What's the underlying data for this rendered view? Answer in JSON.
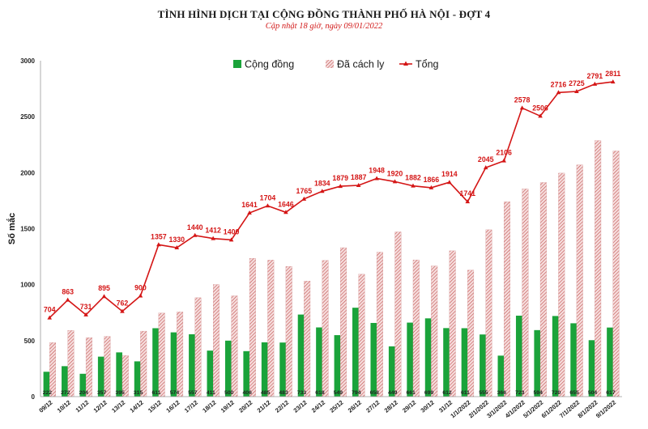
{
  "chart_data": {
    "type": "bar",
    "title": "TÌNH HÌNH DỊCH TẠI CỘNG ĐỒNG THÀNH PHỐ HÀ NỘI - ĐỢT 4",
    "subtitle": "Cập nhật 18 giờ, ngày 09/01/2022",
    "ylabel": "Số mắc",
    "xlabel": "",
    "ylim": [
      0,
      3000
    ],
    "yticks": [
      "0",
      "500",
      "1000",
      "1500",
      "2000",
      "2500",
      "3000"
    ],
    "legend_position": "top",
    "categories": [
      "09/12",
      "10/12",
      "11/12",
      "12/12",
      "13/12",
      "14/12",
      "15/12",
      "16/12",
      "17/12",
      "18/12",
      "19/12",
      "20/12",
      "21/12",
      "22/12",
      "23/12",
      "24/12",
      "25/12",
      "26/12",
      "27/12",
      "28/12",
      "29/12",
      "30/12",
      "31/12",
      "1/1/2022",
      "2/1/2022",
      "3/1/2022",
      "4/1/2022",
      "5/1/2022",
      "6/1/2022",
      "7/1/2022",
      "8/1/2022",
      "9/1/2022"
    ],
    "series": [
      {
        "name": "Cộng đồng",
        "kind": "bar",
        "color": "#1aa33a",
        "values": [
          222,
          272,
          204,
          357,
          395,
          315,
          611,
          574,
          557,
          411,
          500,
          406,
          485,
          483,
          733,
          618,
          549,
          794,
          658,
          449,
          661,
          699,
          612,
          611,
          555,
          366,
          723,
          594,
          720,
          655,
          504,
          617
        ]
      },
      {
        "name": "Đã cách ly",
        "kind": "bar-hatched",
        "color": "#d98b8b",
        "values": [
          482,
          591,
          527,
          538,
          367,
          585,
          746,
          756,
          883,
          1001,
          900,
          1235,
          1219,
          1163,
          1032,
          1216,
          1330,
          1093,
          1290,
          1471,
          1221,
          1167,
          1302,
          1130,
          1490,
          1740,
          1855,
          1912,
          1996,
          2070,
          2287,
          2194
        ]
      },
      {
        "name": "Tổng",
        "kind": "line",
        "color": "#d41515",
        "values": [
          704,
          863,
          731,
          895,
          762,
          900,
          1357,
          1330,
          1440,
          1412,
          1400,
          1641,
          1704,
          1646,
          1765,
          1834,
          1879,
          1887,
          1948,
          1920,
          1882,
          1866,
          1914,
          1741,
          2045,
          2106,
          2578,
          2506,
          2716,
          2725,
          2791,
          2811
        ]
      }
    ]
  }
}
